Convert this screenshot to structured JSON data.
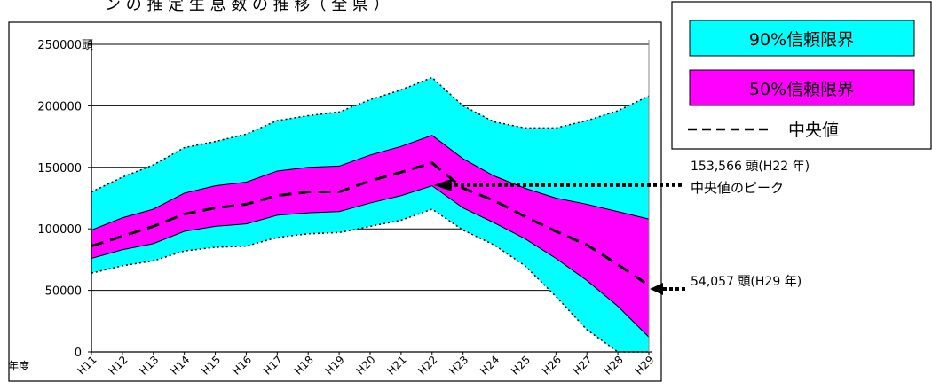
{
  "chart_data": {
    "type": "area",
    "title": "",
    "title_partial": "ン の 推 定 生 息 数 の 推 移（ 全 県 ）",
    "xlabel": "年度",
    "ylabel": "",
    "y_unit": "頭",
    "ylim": [
      0,
      250000
    ],
    "yticks": [
      0,
      50000,
      100000,
      150000,
      200000,
      250000
    ],
    "categories": [
      "H11",
      "H12",
      "H13",
      "H14",
      "H15",
      "H16",
      "H17",
      "H18",
      "H19",
      "H20",
      "H21",
      "H22",
      "H23",
      "H24",
      "H25",
      "H26",
      "H27",
      "H28",
      "H29"
    ],
    "grid": true,
    "legend_position": "top-right",
    "series": [
      {
        "name": "90%信頼限界",
        "kind": "band",
        "color": "#00ffff",
        "upper": [
          130000,
          142000,
          152000,
          166000,
          171000,
          177000,
          188000,
          192000,
          195000,
          205000,
          213000,
          223000,
          200000,
          187000,
          182000,
          182000,
          188000,
          196000,
          208000
        ],
        "lower": [
          64000,
          70000,
          74000,
          82000,
          85000,
          86000,
          93000,
          96000,
          97000,
          102000,
          107000,
          116000,
          99000,
          87000,
          70000,
          45000,
          18000,
          0,
          0
        ]
      },
      {
        "name": "50%信頼限界",
        "kind": "band",
        "color": "#ff00ff",
        "upper": [
          99000,
          109000,
          116000,
          129000,
          135000,
          138000,
          147000,
          150000,
          151000,
          160000,
          167000,
          176000,
          157000,
          143000,
          133000,
          125000,
          120000,
          114000,
          108000
        ],
        "lower": [
          76000,
          83000,
          88000,
          98000,
          102000,
          104000,
          111000,
          113000,
          114000,
          121000,
          127000,
          135000,
          117000,
          105000,
          92000,
          76000,
          58000,
          37000,
          12000
        ]
      },
      {
        "name": "中央値",
        "kind": "line",
        "style": "dashed",
        "color": "#000000",
        "values": [
          86000,
          94000,
          102000,
          112000,
          117000,
          120000,
          127000,
          130000,
          130000,
          139000,
          146000,
          153566,
          133000,
          123000,
          110000,
          98000,
          87000,
          71000,
          54057
        ]
      }
    ],
    "annotations": [
      {
        "id": "peak",
        "text_line1": "153,566 頭(H22 年)",
        "text_line2": "中央値のピーク",
        "category": "H22",
        "value": 153566
      },
      {
        "id": "final",
        "text": "54,057 頭(H29 年)",
        "category": "H29",
        "value": 54057
      }
    ]
  }
}
